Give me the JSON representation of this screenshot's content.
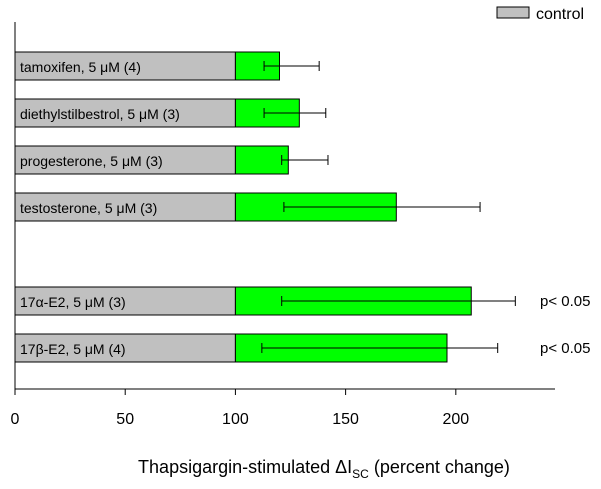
{
  "chart_data": {
    "type": "bar",
    "orientation": "horizontal",
    "xlabel": "Thapsigargin-stimulated ΔI",
    "xlabel_sub": "SC",
    "xlabel_suffix": " (percent change)",
    "xlim": [
      0,
      245
    ],
    "xticks": [
      0,
      50,
      100,
      150,
      200
    ],
    "legend": {
      "label": "control",
      "position": "top-right"
    },
    "baseline_value": 100,
    "colors": {
      "control": "#c0c0c0",
      "treatment": "#00ff00"
    },
    "bars": [
      {
        "label": "tamoxifen, 5 μM (4)",
        "value": 120,
        "err_low": 113,
        "err_high": 138,
        "annotation": ""
      },
      {
        "label": "diethylstilbestrol, 5 μM (3)",
        "value": 129,
        "err_low": 113,
        "err_high": 141,
        "annotation": ""
      },
      {
        "label": "progesterone, 5 μM (3)",
        "value": 124,
        "err_low": 121,
        "err_high": 142,
        "annotation": ""
      },
      {
        "label": "testosterone, 5 μM (3)",
        "value": 173,
        "err_low": 122,
        "err_high": 211,
        "annotation": ""
      },
      {
        "label": "17α-E2, 5 μM (3)",
        "value": 207,
        "err_low": 121,
        "err_high": 227,
        "annotation": "p< 0.05"
      },
      {
        "label": "17β-E2, 5 μM (4)",
        "value": 196,
        "err_low": 112,
        "err_high": 219,
        "annotation": "p< 0.05"
      }
    ]
  }
}
